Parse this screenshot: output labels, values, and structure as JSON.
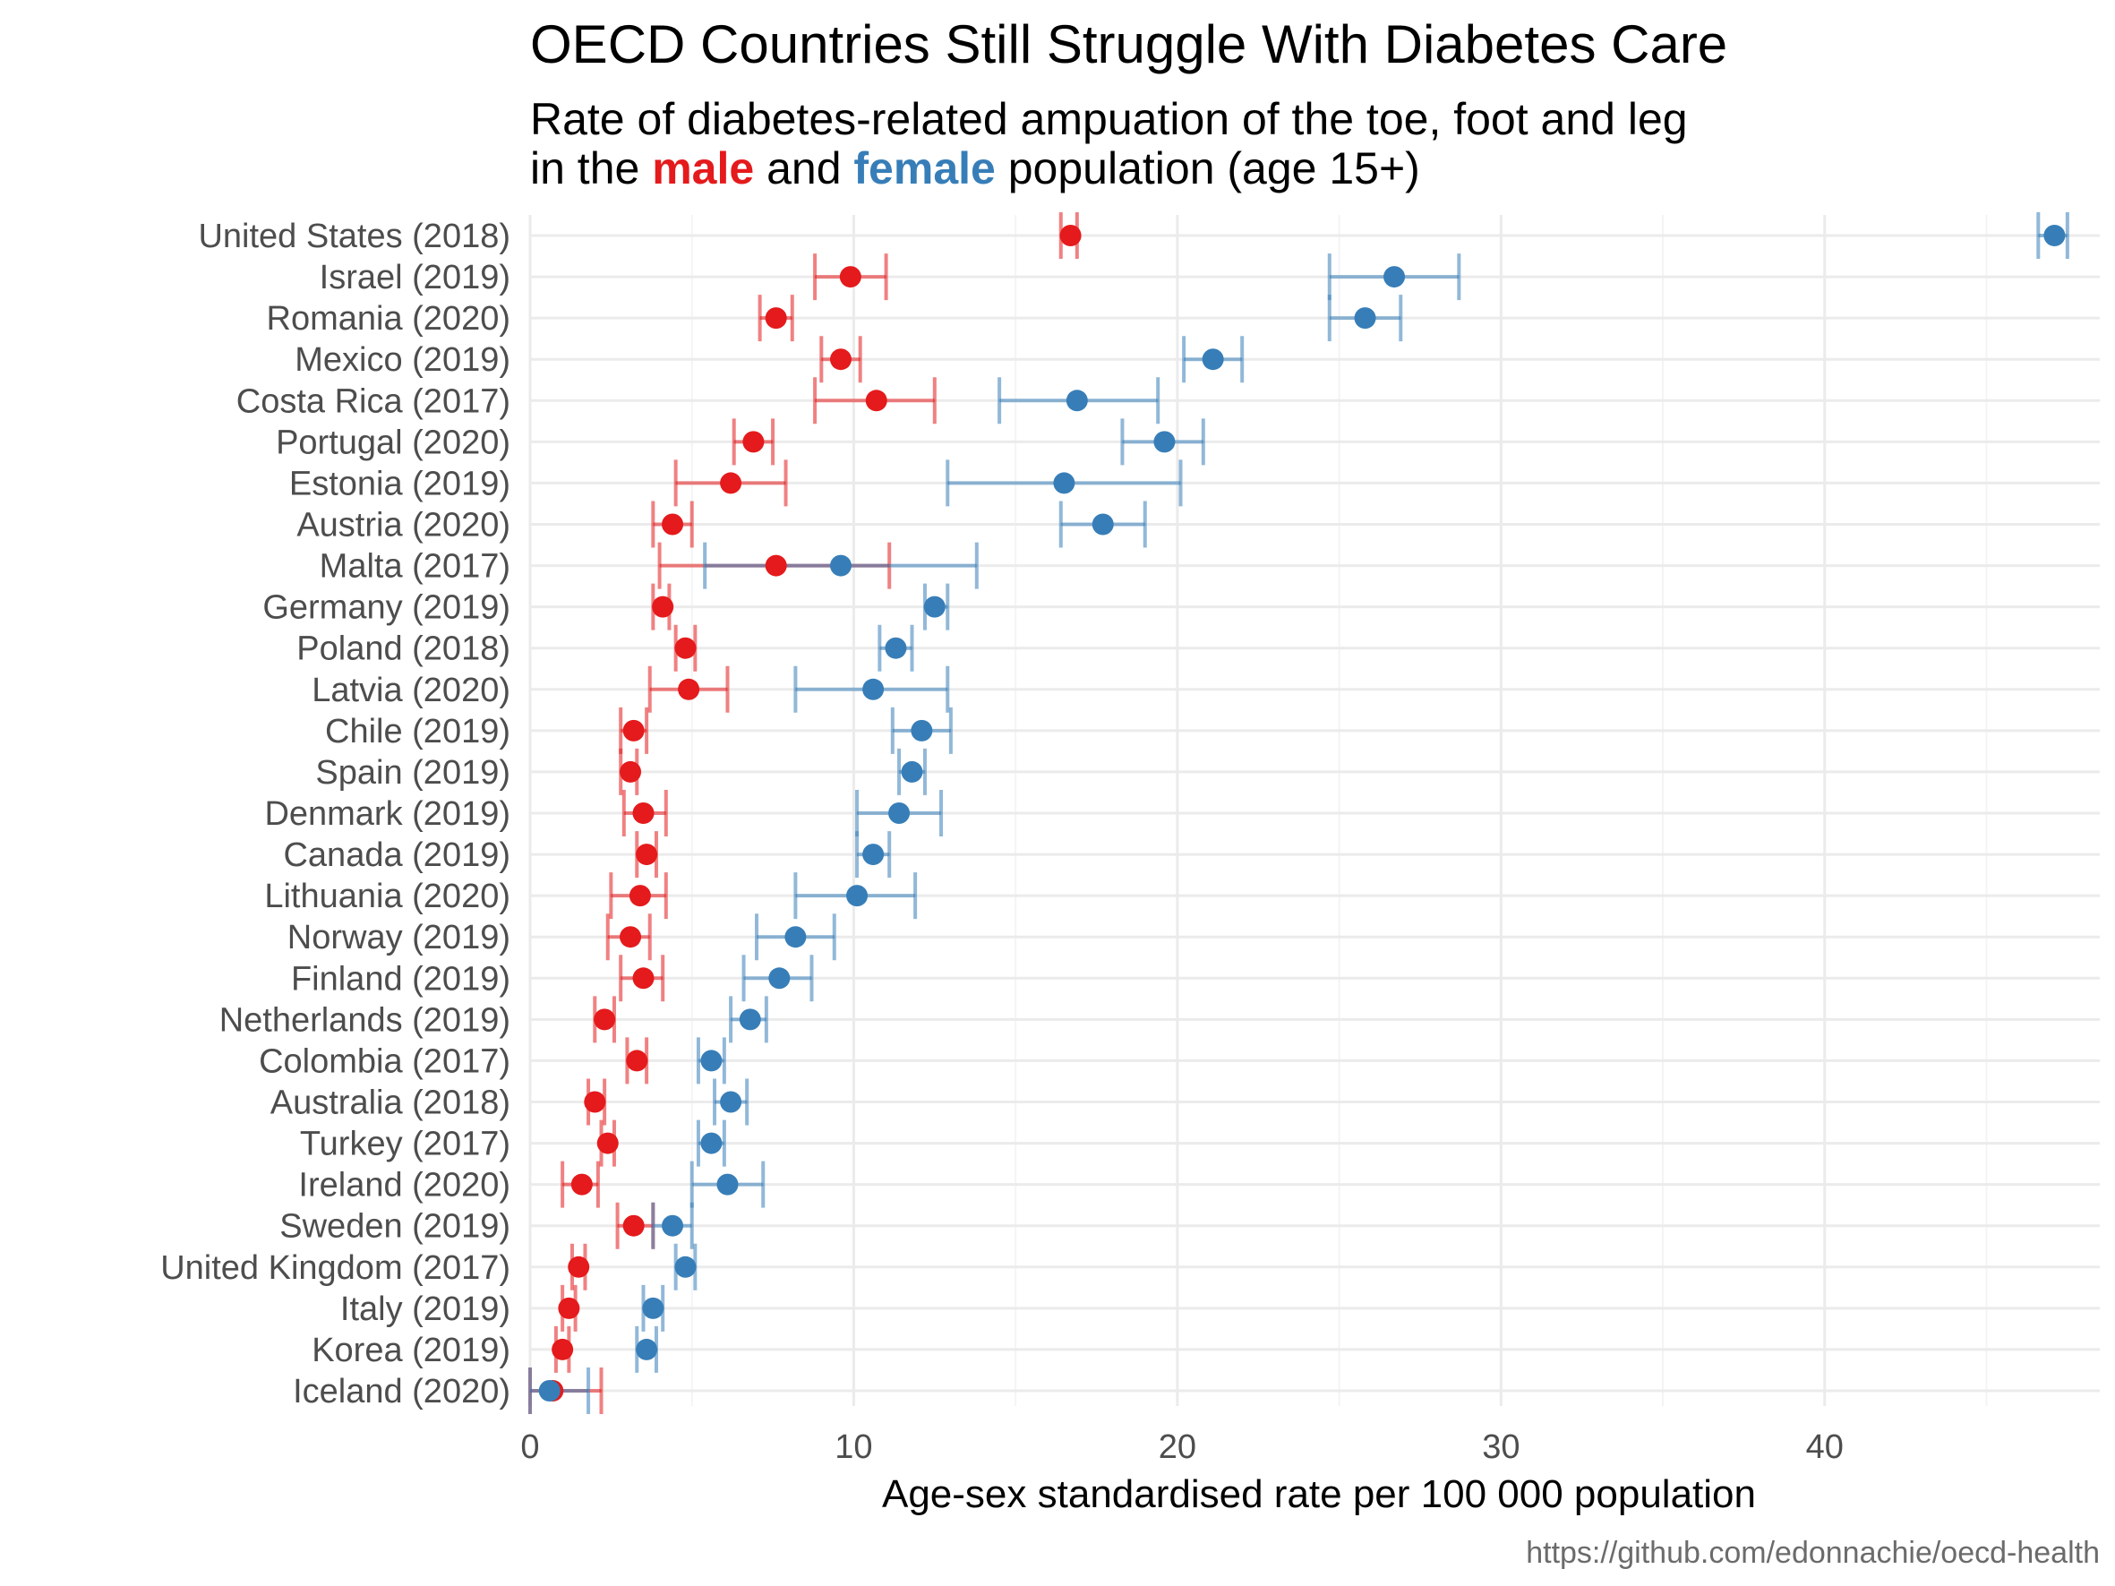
{
  "title": "OECD Countries Still Struggle With Diabetes Care",
  "subtitle": {
    "line1": "Rate of diabetes-related ampuation of the toe, foot and leg",
    "line2_prefix": "in the ",
    "male_word": "male",
    "line2_mid": " and ",
    "female_word": "female",
    "line2_suffix": " population (age 15+)"
  },
  "caption": "https://github.com/edonnachie/oecd-health",
  "colors": {
    "male": "#e41a1c",
    "female": "#377eb8"
  },
  "chart_data": {
    "type": "scatter",
    "subtype": "dot-with-error-bars",
    "xlabel": "Age-sex standardised rate per 100 000 population",
    "xlim": [
      0,
      48.5
    ],
    "xticks": [
      0,
      10,
      20,
      30,
      40
    ],
    "grid": true,
    "legend": "none (colors explained in subtitle)",
    "categories": [
      "United States (2018)",
      "Israel (2019)",
      "Romania (2020)",
      "Mexico (2019)",
      "Costa Rica (2017)",
      "Portugal (2020)",
      "Estonia (2019)",
      "Austria (2020)",
      "Malta (2017)",
      "Germany (2019)",
      "Poland (2018)",
      "Latvia (2020)",
      "Chile (2019)",
      "Spain (2019)",
      "Denmark (2019)",
      "Canada (2019)",
      "Lithuania (2020)",
      "Norway (2019)",
      "Finland (2019)",
      "Netherlands (2019)",
      "Colombia (2017)",
      "Australia (2018)",
      "Turkey (2017)",
      "Ireland (2020)",
      "Sweden (2019)",
      "United Kingdom (2017)",
      "Italy (2019)",
      "Korea (2019)",
      "Iceland (2020)"
    ],
    "series": [
      {
        "name": "male",
        "values": [
          16.7,
          9.9,
          7.6,
          9.6,
          10.7,
          6.9,
          6.2,
          4.4,
          7.6,
          4.1,
          4.8,
          4.9,
          3.2,
          3.1,
          3.5,
          3.6,
          3.4,
          3.1,
          3.5,
          2.3,
          3.3,
          2.0,
          2.4,
          1.6,
          3.2,
          1.5,
          1.2,
          1.0,
          0.7
        ],
        "lower": [
          16.4,
          8.8,
          7.1,
          9.0,
          8.8,
          6.3,
          4.5,
          3.8,
          4.0,
          3.8,
          4.5,
          3.7,
          2.8,
          2.8,
          2.9,
          3.3,
          2.5,
          2.4,
          2.8,
          2.0,
          3.0,
          1.8,
          2.2,
          1.0,
          2.7,
          1.3,
          1.0,
          0.8,
          0.0
        ],
        "upper": [
          16.9,
          11.0,
          8.1,
          10.2,
          12.5,
          7.5,
          7.9,
          5.0,
          11.1,
          4.3,
          5.1,
          6.1,
          3.6,
          3.3,
          4.2,
          3.9,
          4.2,
          3.7,
          4.1,
          2.6,
          3.6,
          2.3,
          2.6,
          2.1,
          3.8,
          1.7,
          1.4,
          1.2,
          2.2
        ]
      },
      {
        "name": "female",
        "values": [
          47.1,
          26.7,
          25.8,
          21.1,
          16.9,
          19.6,
          16.5,
          17.7,
          9.6,
          12.5,
          11.3,
          10.6,
          12.1,
          11.8,
          11.4,
          10.6,
          10.1,
          8.2,
          7.7,
          6.8,
          5.6,
          6.2,
          5.6,
          6.1,
          4.4,
          4.8,
          3.8,
          3.6,
          0.6
        ],
        "lower": [
          46.6,
          24.7,
          24.7,
          20.2,
          14.5,
          18.3,
          12.9,
          16.4,
          5.4,
          12.2,
          10.8,
          8.2,
          11.2,
          11.4,
          10.1,
          10.1,
          8.2,
          7.0,
          6.6,
          6.2,
          5.2,
          5.7,
          5.2,
          5.0,
          3.8,
          4.5,
          3.5,
          3.3,
          0.0
        ],
        "upper": [
          47.5,
          28.7,
          26.9,
          22.0,
          19.4,
          20.8,
          20.1,
          19.0,
          13.8,
          12.9,
          11.8,
          12.9,
          13.0,
          12.2,
          12.7,
          11.1,
          11.9,
          9.4,
          8.7,
          7.3,
          6.0,
          6.7,
          6.0,
          7.2,
          5.0,
          5.1,
          4.1,
          3.9,
          1.8
        ]
      }
    ]
  }
}
